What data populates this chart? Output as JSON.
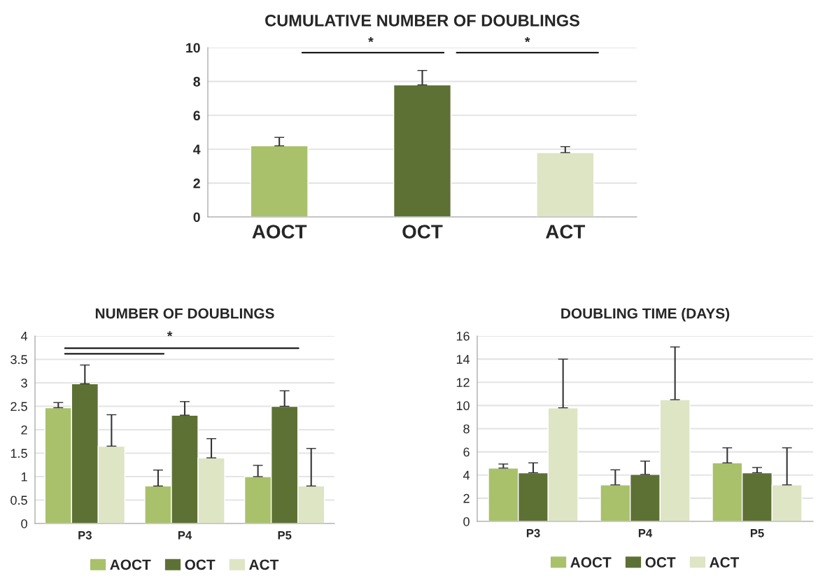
{
  "chart_data": [
    {
      "type": "bar",
      "title": "CUMULATIVE NUMBER OF DOUBLINGS",
      "categories": [
        "AOCT",
        "OCT",
        "ACT"
      ],
      "series": [
        {
          "values": [
            4.2,
            7.8,
            3.8
          ],
          "colors": [
            "#a9c16a",
            "#5e7135",
            "#dde5c5"
          ],
          "errors": [
            [
              4.2,
              4.7
            ],
            [
              7.8,
              8.65
            ],
            [
              3.8,
              4.15
            ]
          ]
        }
      ],
      "ylim": [
        0,
        10
      ],
      "yticks": [
        0,
        2,
        4,
        6,
        8,
        10
      ],
      "grid": "y",
      "legend": false,
      "annotations": [
        "*",
        "*"
      ]
    },
    {
      "type": "bar",
      "title": "NUMBER OF DOUBLINGS",
      "categories": [
        "P3",
        "P4",
        "P5"
      ],
      "series": [
        {
          "name": "AOCT",
          "color": "#a9c16a",
          "values": [
            2.47,
            0.8,
            1.0
          ],
          "errors": [
            [
              2.47,
              2.58
            ],
            [
              0.8,
              1.14
            ],
            [
              1.0,
              1.24
            ]
          ]
        },
        {
          "name": "OCT",
          "color": "#5e7135",
          "values": [
            2.98,
            2.31,
            2.5
          ],
          "errors": [
            [
              2.98,
              3.38
            ],
            [
              2.31,
              2.6
            ],
            [
              2.5,
              2.83
            ]
          ]
        },
        {
          "name": "ACT",
          "color": "#dde5c5",
          "values": [
            1.65,
            1.4,
            0.8
          ],
          "errors": [
            [
              1.65,
              2.32
            ],
            [
              1.4,
              1.81
            ],
            [
              0.8,
              1.6
            ]
          ]
        }
      ],
      "ylim": [
        0,
        4
      ],
      "yticks": [
        0,
        0.5,
        1,
        1.5,
        2,
        2.5,
        3,
        3.5,
        4
      ],
      "grid": "y",
      "legend": "bottom",
      "annotations": [
        "*"
      ]
    },
    {
      "type": "bar",
      "title": "DOUBLING TIME (DAYS)",
      "categories": [
        "P3",
        "P4",
        "P5"
      ],
      "series": [
        {
          "name": "AOCT",
          "color": "#a9c16a",
          "values": [
            4.6,
            3.15,
            5.05
          ],
          "errors": [
            [
              4.6,
              4.95
            ],
            [
              3.15,
              4.45
            ],
            [
              5.05,
              6.35
            ]
          ]
        },
        {
          "name": "OCT",
          "color": "#5e7135",
          "values": [
            4.2,
            4.05,
            4.2
          ],
          "errors": [
            [
              4.2,
              5.05
            ],
            [
              4.05,
              5.2
            ],
            [
              4.2,
              4.65
            ]
          ]
        },
        {
          "name": "ACT",
          "color": "#dde5c5",
          "values": [
            9.8,
            10.5,
            3.15
          ],
          "errors": [
            [
              9.8,
              14.0
            ],
            [
              10.5,
              15.05
            ],
            [
              3.15,
              6.35
            ]
          ]
        }
      ],
      "ylim": [
        0,
        16
      ],
      "yticks": [
        0,
        2,
        4,
        6,
        8,
        10,
        12,
        14,
        16
      ],
      "grid": "y",
      "legend": "bottom"
    }
  ]
}
